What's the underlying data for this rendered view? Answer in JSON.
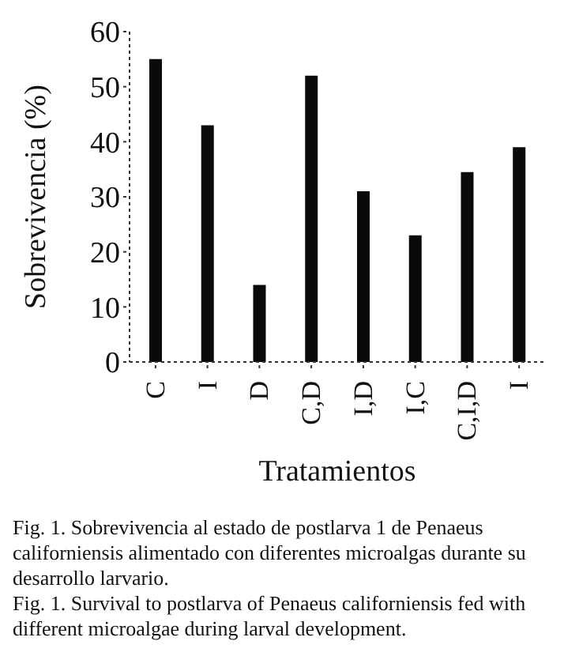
{
  "chart_data": {
    "type": "bar",
    "xlabel": "Tratamientos",
    "ylabel": "Sobrevivencia (%)",
    "categories": [
      "C",
      "I",
      "D",
      "C,D",
      "I,D",
      "I,C",
      "C,I,D",
      "I"
    ],
    "values": [
      55,
      43,
      14,
      52,
      31,
      23,
      34.5,
      39
    ],
    "color": "#0a0a0a",
    "ylim": [
      0,
      60
    ],
    "yticks": [
      0,
      10,
      20,
      30,
      40,
      50,
      60
    ],
    "grid": false,
    "legend": false,
    "annotations": [
      "Fig. 1. Sobrevivencia al estado de postlarva 1 de Penaeus californiensis alimentado con diferentes microalgas durante su  desarrollo larvario.",
      "Fig. 1. Survival to postlarva of Penaeus californiensis fed with different microalgae during larval development."
    ]
  }
}
